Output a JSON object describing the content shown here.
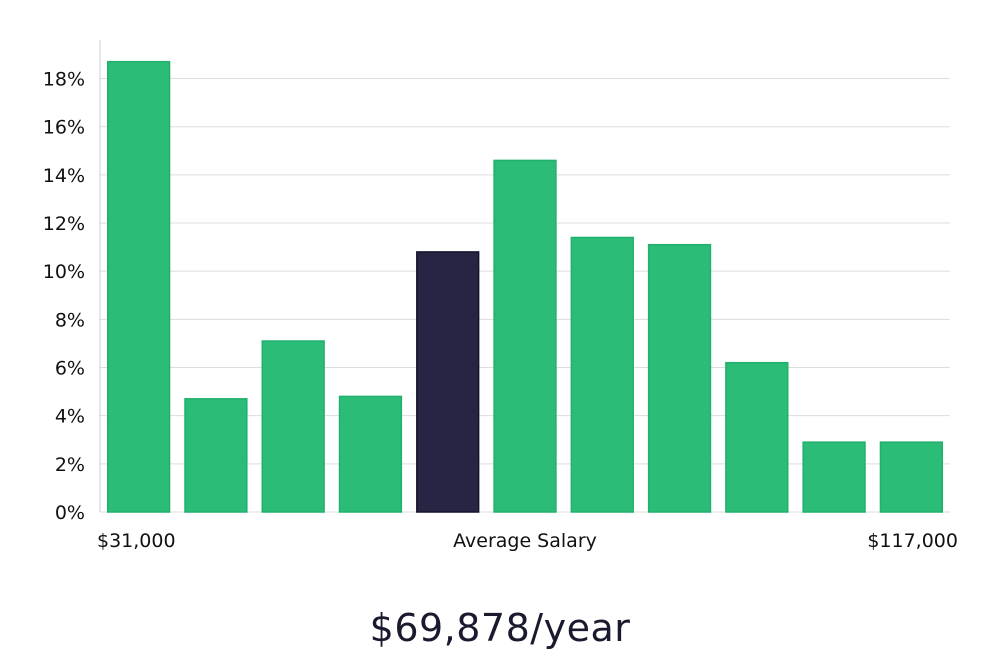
{
  "chart_data": {
    "type": "bar",
    "categories": [
      "1",
      "2",
      "3",
      "4",
      "5",
      "6",
      "7",
      "8",
      "9",
      "10",
      "11"
    ],
    "values": [
      18.7,
      4.7,
      7.1,
      4.8,
      10.8,
      14.6,
      11.4,
      11.1,
      6.2,
      2.9,
      2.9
    ],
    "highlight_index": 4,
    "ylim": [
      0,
      19.6
    ],
    "yticks": [
      0,
      2,
      4,
      6,
      8,
      10,
      12,
      14,
      16,
      18
    ],
    "ytick_format": "%",
    "grid": true,
    "x_labels": {
      "left": "$31,000",
      "center": "Average Salary",
      "right": "$117,000"
    },
    "colors": {
      "bar": "#2bbd77",
      "bar_edge": "#22b06c",
      "highlight": "#272543",
      "grid": "#dddddd",
      "axis": "#cccccc"
    }
  },
  "summary": {
    "salary": "$69,878/year"
  }
}
